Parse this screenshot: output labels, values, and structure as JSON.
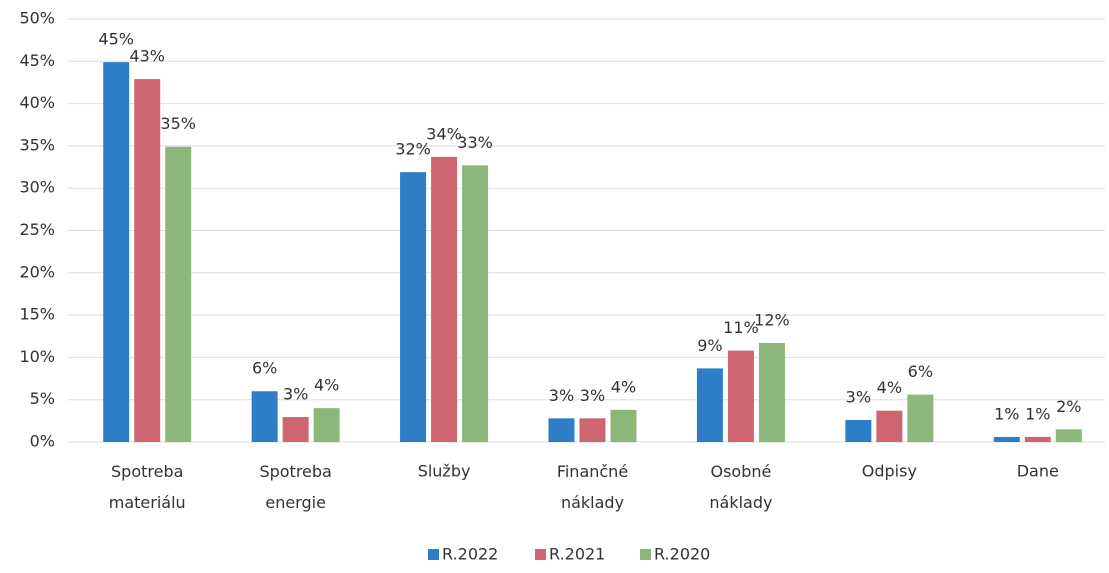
{
  "chart_data": {
    "type": "bar",
    "categories": [
      "Spotreba materiálu",
      "Spotreba energie",
      "Služby",
      "Finančné náklady",
      "Osobné náklady",
      "Odpisy",
      "Dane"
    ],
    "series": [
      {
        "name": "R.2022",
        "color": "#2e7ec7",
        "values": [
          44.9,
          6.0,
          31.9,
          2.8,
          8.7,
          2.6,
          0.6
        ],
        "value_labels": [
          "45%",
          "6%",
          "32%",
          "3%",
          "9%",
          "3%",
          "1%"
        ]
      },
      {
        "name": "R.2021",
        "color": "#cf6571",
        "values": [
          42.9,
          2.95,
          33.7,
          2.8,
          10.8,
          3.7,
          0.6
        ],
        "value_labels": [
          "43%",
          "3%",
          "34%",
          "3%",
          "11%",
          "4%",
          "1%"
        ]
      },
      {
        "name": "R.2020",
        "color": "#8db67b",
        "values": [
          34.9,
          4.0,
          32.7,
          3.8,
          11.7,
          5.6,
          1.5
        ],
        "value_labels": [
          "35%",
          "4%",
          "33%",
          "4%",
          "12%",
          "6%",
          "2%"
        ]
      }
    ],
    "ylim": [
      0,
      50
    ],
    "yticks": [
      {
        "value": 0,
        "label": "0%"
      },
      {
        "value": 5,
        "label": "5%"
      },
      {
        "value": 10,
        "label": "10%"
      },
      {
        "value": 15,
        "label": "15%"
      },
      {
        "value": 20,
        "label": "20%"
      },
      {
        "value": 25,
        "label": "25%"
      },
      {
        "value": 30,
        "label": "30%"
      },
      {
        "value": 35,
        "label": "35%"
      },
      {
        "value": 40,
        "label": "40%"
      },
      {
        "value": 45,
        "label": "45%"
      },
      {
        "value": 50,
        "label": "50%"
      }
    ],
    "grid": true,
    "legend": "bottom"
  }
}
